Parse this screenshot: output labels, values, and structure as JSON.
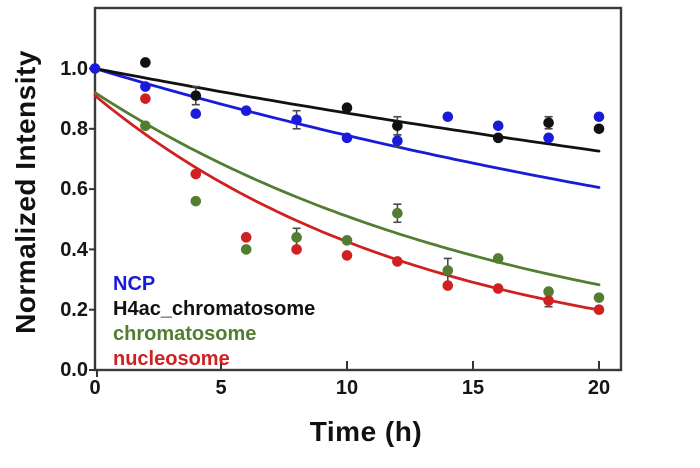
{
  "chart_data": {
    "type": "scatter",
    "title": "",
    "xlabel": "Time (h)",
    "ylabel": "Normalized Intensity",
    "xlim": [
      0,
      20.9
    ],
    "ylim": [
      0,
      1.2
    ],
    "x_ticks": [
      "0",
      "5",
      "10",
      "15",
      "20"
    ],
    "x_tick_values": [
      0,
      5,
      10,
      15,
      20
    ],
    "y_ticks": [
      "0.0",
      "0.2",
      "0.4",
      "0.6",
      "0.8",
      "1.0"
    ],
    "y_tick_values": [
      0,
      0.2,
      0.4,
      0.6,
      0.8,
      1.0
    ],
    "grid": "off",
    "legend_position": "lower-left",
    "frame_color": "#3a3a3a",
    "error_bar_color": "#4a4a4a",
    "series": [
      {
        "name": "NCP",
        "color": "#1a1ad9",
        "x": [
          0,
          2,
          4,
          6,
          8,
          10,
          12,
          14,
          16,
          18,
          20
        ],
        "y": [
          1.0,
          0.94,
          0.85,
          0.86,
          0.83,
          0.77,
          0.76,
          0.84,
          0.81,
          0.77,
          0.84
        ],
        "err": [
          0,
          0,
          0,
          0,
          0.03,
          0,
          0.02,
          0,
          0,
          0,
          0
        ],
        "fit": {
          "type": "exponential",
          "A": 1.0,
          "k": 0.0251,
          "c": 0,
          "t_end": 20
        }
      },
      {
        "name": "H4ac_chromatosome",
        "color": "#111111",
        "x": [
          2,
          4,
          10,
          12,
          16,
          18,
          20
        ],
        "y": [
          1.02,
          0.91,
          0.87,
          0.81,
          0.77,
          0.82,
          0.8
        ],
        "err": [
          0,
          0.03,
          0,
          0.03,
          0,
          0.02,
          0
        ],
        "fit": {
          "type": "exponential",
          "A": 1.0,
          "k": 0.016,
          "c": 0,
          "t_end": 20
        }
      },
      {
        "name": "chromatosome",
        "color": "#537d31",
        "x": [
          2,
          4,
          6,
          8,
          10,
          12,
          14,
          16,
          18,
          20
        ],
        "y": [
          0.81,
          0.56,
          0.4,
          0.44,
          0.43,
          0.52,
          0.33,
          0.37,
          0.26,
          0.24
        ],
        "err": [
          0,
          0,
          0,
          0.03,
          0,
          0.03,
          0.04,
          0,
          0,
          0
        ],
        "fit": {
          "type": "exponential",
          "A": 0.92,
          "k": 0.059,
          "c": 0,
          "t_end": 20
        }
      },
      {
        "name": "nucleosome",
        "color": "#d02121",
        "x": [
          2,
          4,
          6,
          8,
          10,
          12,
          14,
          16,
          18,
          20
        ],
        "y": [
          0.9,
          0.65,
          0.44,
          0.4,
          0.38,
          0.36,
          0.28,
          0.27,
          0.23,
          0.2
        ],
        "err": [
          0,
          0,
          0,
          0,
          0,
          0,
          0,
          0,
          0.02,
          0
        ],
        "fit": {
          "type": "exponential",
          "A": 0.91,
          "k": 0.076,
          "c": 0,
          "t_end": 20.2
        }
      }
    ]
  },
  "legend": {
    "items": [
      {
        "label": "NCP",
        "color": "#1a1ad9"
      },
      {
        "label": "H4ac_chromatosome",
        "color": "#111111"
      },
      {
        "label": "chromatosome",
        "color": "#537d31"
      },
      {
        "label": "nucleosome",
        "color": "#d02121"
      }
    ]
  }
}
